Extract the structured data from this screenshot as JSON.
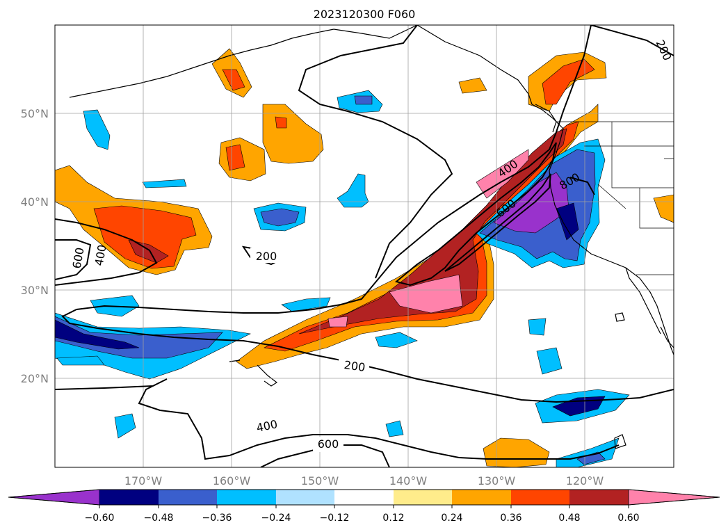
{
  "title": "2023120300 F060",
  "map": {
    "longitude_ticks": [
      "170°W",
      "160°W",
      "150°W",
      "140°W",
      "130°W",
      "120°W"
    ],
    "latitude_ticks": [
      "50°N",
      "40°N",
      "30°N",
      "20°N"
    ],
    "contour_labels": [
      {
        "id": "c200-west",
        "text": "200"
      },
      {
        "id": "c200-south",
        "text": "200"
      },
      {
        "id": "c200-ne",
        "text": "200"
      },
      {
        "id": "c400-west",
        "text": "400"
      },
      {
        "id": "c400-jet",
        "text": "400"
      },
      {
        "id": "c400-south",
        "text": "400"
      },
      {
        "id": "c600-west",
        "text": "600"
      },
      {
        "id": "c600-jet",
        "text": "600"
      },
      {
        "id": "c600-south",
        "text": "600"
      },
      {
        "id": "c800-coast",
        "text": "800"
      }
    ]
  },
  "colorbar": {
    "tick_labels": [
      "−0.60",
      "−0.48",
      "−0.36",
      "−0.24",
      "−0.12",
      "0.12",
      "0.24",
      "0.36",
      "0.48",
      "0.60"
    ],
    "colors": [
      "#9932cc",
      "#000080",
      "#3a5fcd",
      "#00bfff",
      "#b0e2ff",
      "#ffffff",
      "#ffec8b",
      "#ffa500",
      "#ff4500",
      "#b22222",
      "#ff82ab"
    ]
  }
}
